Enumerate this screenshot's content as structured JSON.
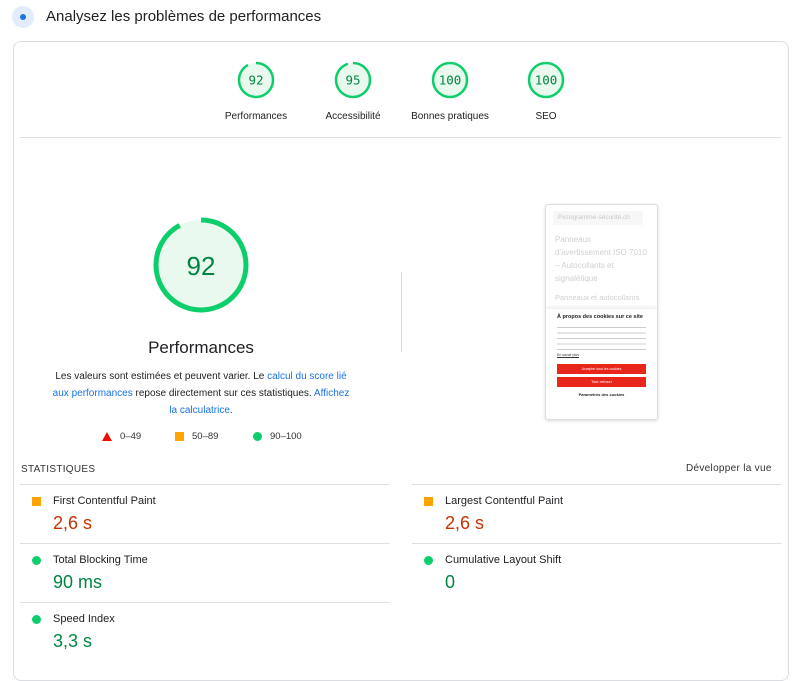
{
  "header": {
    "title": "Analysez les problèmes de performances",
    "icon": "lighthouse-icon"
  },
  "categories": [
    {
      "label": "Performances",
      "score": 92
    },
    {
      "label": "Accessibilité",
      "score": 95
    },
    {
      "label": "Bonnes pratiques",
      "score": 100
    },
    {
      "label": "SEO",
      "score": 100
    }
  ],
  "main": {
    "score": 92,
    "title": "Performances",
    "desc_1": "Les valeurs sont estimées et peuvent varier. Le ",
    "link_1": "calcul du score lié aux performances",
    "desc_2": " repose directement sur ces statistiques. ",
    "link_2": "Affichez la calculatrice",
    "desc_3": ".",
    "legend": [
      {
        "label": "0–49",
        "color": "#eb0f00"
      },
      {
        "label": "50–89",
        "color": "#ffa400"
      },
      {
        "label": "90–100",
        "color": "#0cce6b"
      }
    ]
  },
  "thumbnail": {
    "site": "Pictogramme-sécurité.ch",
    "heading": "Panneaux d'avertissement ISO 7010 – Autocollants et signalétique",
    "sub": "Panneaux et autocollants",
    "cookie_title": "À propos des cookies sur ce site",
    "learn_more": "En savoir plus",
    "accept": "Accepter tous les cookies",
    "refuse": "Tout refuser",
    "settings": "Paramètres des cookies"
  },
  "stats": {
    "title": "STATISTIQUES",
    "expand": "Développer la vue",
    "metrics": [
      {
        "name": "First Contentful Paint",
        "value": "2,6 s",
        "status": "average"
      },
      {
        "name": "Largest Contentful Paint",
        "value": "2,6 s",
        "status": "average"
      },
      {
        "name": "Total Blocking Time",
        "value": "90 ms",
        "status": "good"
      },
      {
        "name": "Cumulative Layout Shift",
        "value": "0",
        "status": "good"
      },
      {
        "name": "Speed Index",
        "value": "3,3 s",
        "status": "good"
      }
    ]
  },
  "colors": {
    "good": "#0cce6b",
    "average": "#ffa400",
    "good_text": "#018642",
    "average_text": "#c33300",
    "link": "#1a73e8"
  }
}
